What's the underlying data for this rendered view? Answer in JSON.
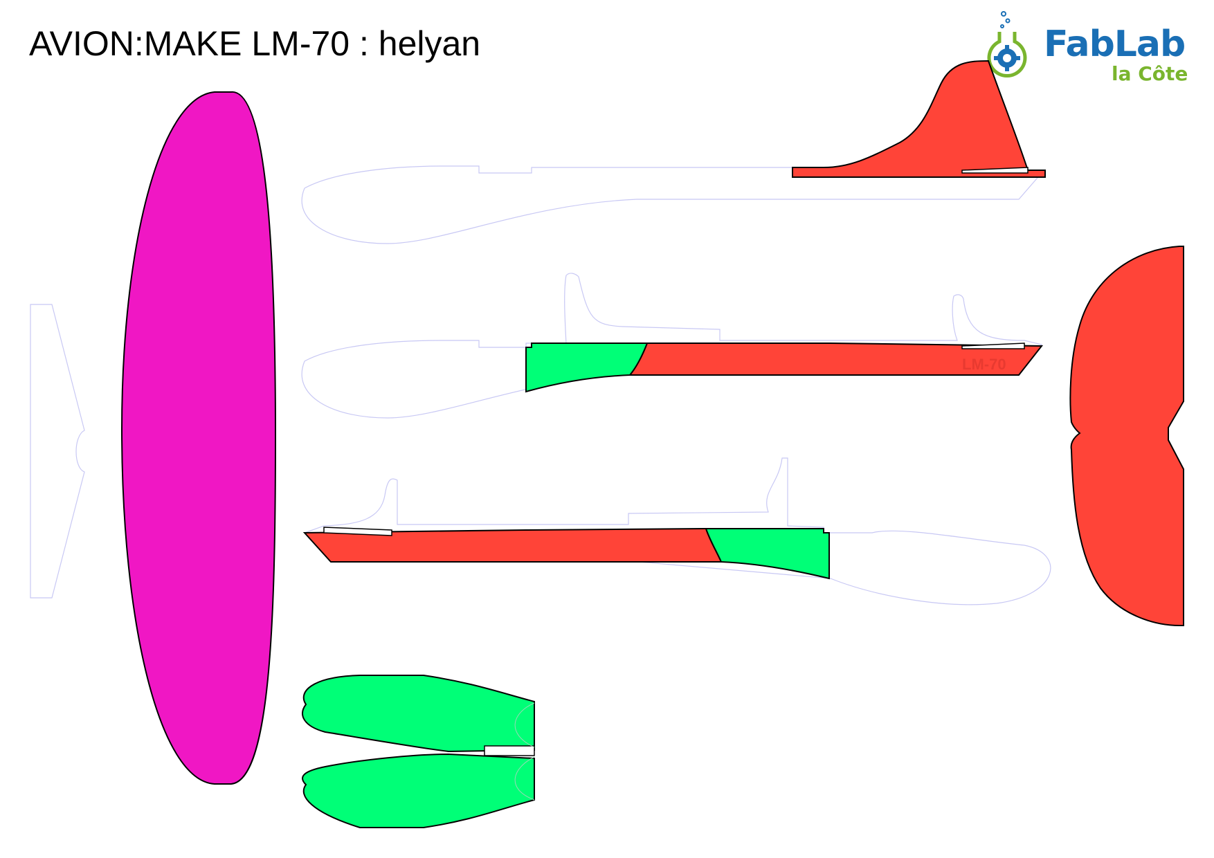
{
  "title": "AVION:MAKE LM-70 : helyan",
  "logo": {
    "name": "FabLab",
    "sub": "la Côte"
  },
  "part_label": "LM-70",
  "colors": {
    "wing": "#f017c4",
    "red": "#ff4438",
    "green": "#00ff77",
    "guide": "#c8c8f4",
    "logo_blue": "#1a6fb5",
    "logo_green": "#7ab52e"
  }
}
